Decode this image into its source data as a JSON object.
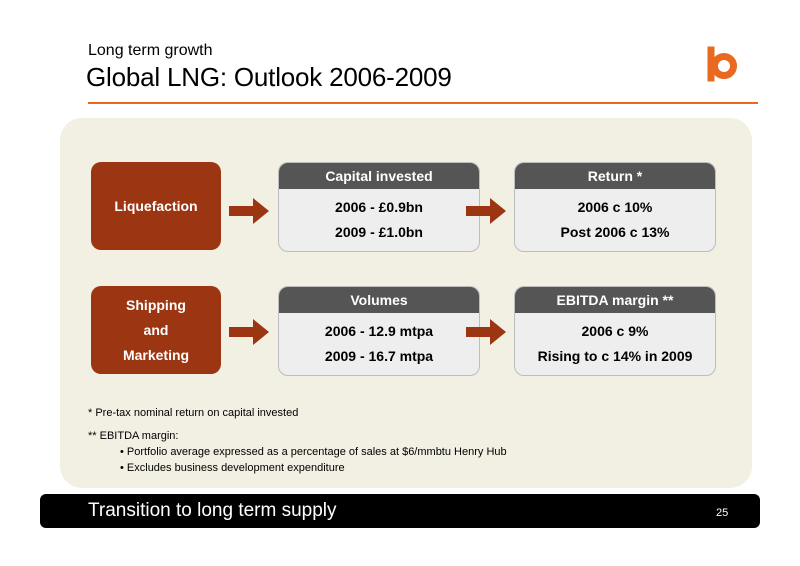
{
  "header": {
    "subtitle": "Long term growth",
    "title": "Global LNG: Outlook 2006-2009",
    "logo_icon": "bg-logo-icon",
    "accent_color": "#e8691f"
  },
  "rows": [
    {
      "segment_label": "Liquefaction",
      "card_left": {
        "heading": "Capital invested",
        "line1": "2006 - £0.9bn",
        "line2": "2009 - £1.0bn"
      },
      "card_right": {
        "heading": "Return *",
        "line1": "2006 c 10%",
        "line2": "Post 2006 c 13%"
      }
    },
    {
      "segment_label_lines": [
        "Shipping",
        "and",
        "Marketing"
      ],
      "card_left": {
        "heading": "Volumes",
        "line1": "2006 - 12.9 mtpa",
        "line2": "2009 - 16.7 mtpa"
      },
      "card_right": {
        "heading": "EBITDA margin **",
        "line1": "2006 c 9%",
        "line2": "Rising to c 14% in 2009"
      }
    }
  ],
  "notes": {
    "note1": "* Pre-tax nominal return on capital invested",
    "note2": "** EBITDA margin:",
    "bullet1": "• Portfolio average expressed as a percentage of sales at $6/mmbtu Henry Hub",
    "bullet2": "• Excludes business development expenditure"
  },
  "footer": {
    "text": "Transition to long term supply",
    "page_number": "25"
  },
  "colors": {
    "segment_box": "#9c3512",
    "card_header": "#555555",
    "arrow": "#9c3512",
    "panel_bg": "#f2efe3"
  }
}
